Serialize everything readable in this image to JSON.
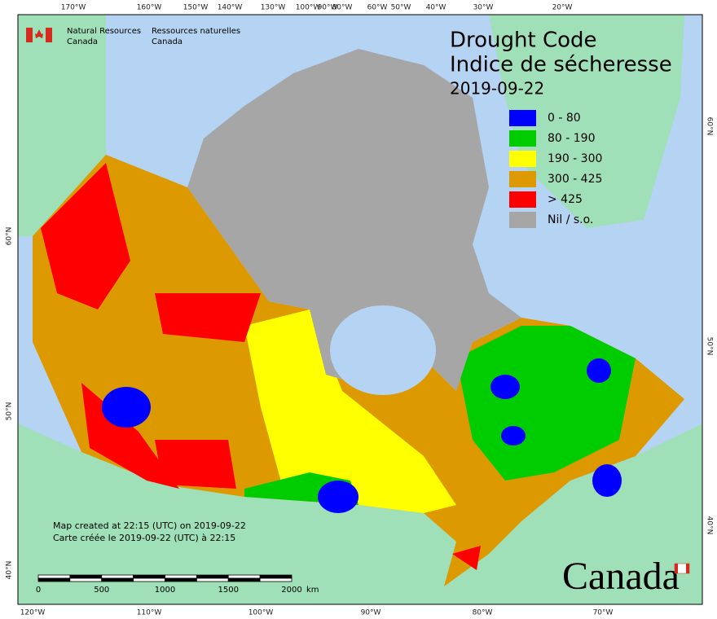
{
  "header": {
    "agency_en": [
      "Natural Resources",
      "Canada"
    ],
    "agency_fr": [
      "Ressources naturelles",
      "Canada"
    ]
  },
  "title": [
    "Drought Code",
    "Indice de sécheresse"
  ],
  "date": "2019-09-22",
  "legend": [
    {
      "label": "0 - 80",
      "color": "#0000ff"
    },
    {
      "label": "80 - 190",
      "color": "#00cc00"
    },
    {
      "label": "190 - 300",
      "color": "#ffff00"
    },
    {
      "label": "300 - 425",
      "color": "#dd9900"
    },
    {
      "label": "> 425",
      "color": "#ff0000"
    },
    {
      "label": "Nil / s.o.",
      "color": "#a6a6a6"
    }
  ],
  "graticule": {
    "top": [
      "170°W",
      "160°W",
      "150°W",
      "140°W",
      "130°W",
      "100°W",
      "90°W",
      "80°W",
      "60°W",
      "50°W",
      "40°W",
      "30°W",
      "20°W"
    ],
    "bottom": [
      "120°W",
      "110°W",
      "100°W",
      "90°W",
      "80°W",
      "70°W"
    ],
    "left": [
      "60°N",
      "50°N",
      "40°N"
    ],
    "right": [
      "60°N",
      "50°N",
      "40°N"
    ]
  },
  "notes": [
    "Map created at 22:15 (UTC) on 2019-09-22",
    "Carte créée le 2019-09-22 (UTC) à 22:15"
  ],
  "scale": {
    "ticks": [
      "0",
      "500",
      "1000",
      "1500",
      "2000"
    ],
    "unit": "km"
  },
  "wordmark": "Canada"
}
